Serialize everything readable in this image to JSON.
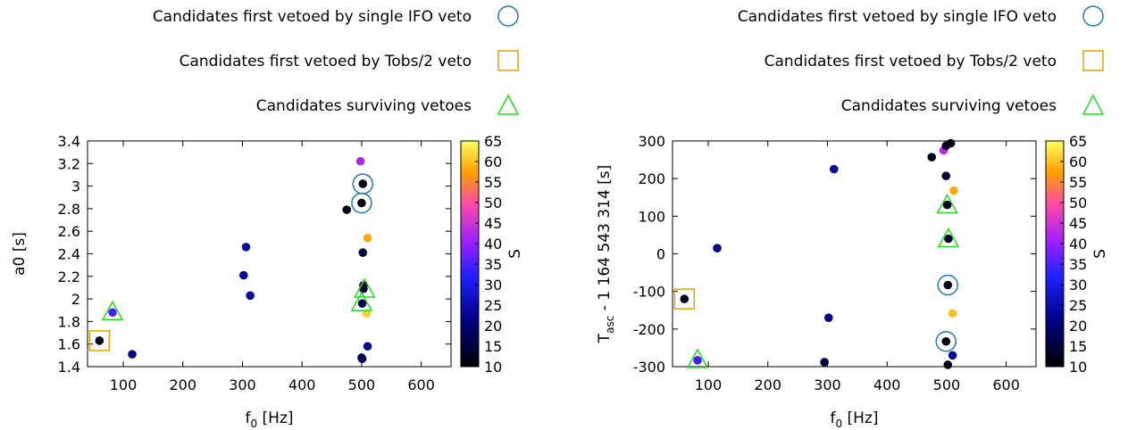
{
  "legend": [
    {
      "label": "Candidates first vetoed by single IFO veto",
      "marker": "circle",
      "color": "#1f7ab4"
    },
    {
      "label": "Candidates first vetoed by Tobs/2 veto",
      "marker": "square",
      "color": "#e69f00"
    },
    {
      "label": "Candidates surviving vetoes",
      "marker": "triangle",
      "color": "#22dd22"
    }
  ],
  "chart_data": [
    {
      "type": "scatter",
      "xlabel": "f0 [Hz]",
      "xlabel_main": "f",
      "xlabel_sub": "0",
      "xlabel_unit": " [Hz]",
      "ylabel": "a0 [s]",
      "xlim": [
        40,
        650
      ],
      "ylim": [
        1.4,
        3.4
      ],
      "xticks": [
        "100",
        "200",
        "300",
        "400",
        "500",
        "600"
      ],
      "xtick_values": [
        100,
        200,
        300,
        400,
        500,
        600
      ],
      "yticks": [
        "1.4",
        "1.6",
        "1.8",
        "2",
        "2.2",
        "2.4",
        "2.6",
        "2.8",
        "3",
        "3.2",
        "3.4"
      ],
      "ytick_values": [
        1.4,
        1.6,
        1.8,
        2.0,
        2.2,
        2.4,
        2.6,
        2.8,
        3.0,
        3.2,
        3.4
      ],
      "colorbar": {
        "label": "S",
        "range": [
          10,
          65
        ],
        "ticks": [
          "10",
          "15",
          "20",
          "25",
          "30",
          "35",
          "40",
          "45",
          "50",
          "55",
          "60",
          "65"
        ]
      },
      "points": [
        {
          "x": 60,
          "y": 1.63,
          "s": 12
        },
        {
          "x": 82,
          "y": 1.88,
          "s": 34
        },
        {
          "x": 115,
          "y": 1.51,
          "s": 22
        },
        {
          "x": 302,
          "y": 2.21,
          "s": 23
        },
        {
          "x": 306,
          "y": 2.46,
          "s": 24
        },
        {
          "x": 313,
          "y": 2.03,
          "s": 24
        },
        {
          "x": 475,
          "y": 2.79,
          "s": 12
        },
        {
          "x": 498,
          "y": 3.22,
          "s": 42
        },
        {
          "x": 500,
          "y": 2.85,
          "s": 11
        },
        {
          "x": 502,
          "y": 3.02,
          "s": 11
        },
        {
          "x": 502,
          "y": 2.41,
          "s": 15
        },
        {
          "x": 503,
          "y": 2.12,
          "s": 12
        },
        {
          "x": 503,
          "y": 2.09,
          "s": 15
        },
        {
          "x": 501,
          "y": 1.96,
          "s": 17
        },
        {
          "x": 500,
          "y": 1.48,
          "s": 17
        },
        {
          "x": 501,
          "y": 1.47,
          "s": 18
        },
        {
          "x": 510,
          "y": 2.54,
          "s": 58
        },
        {
          "x": 508,
          "y": 1.87,
          "s": 61
        },
        {
          "x": 510,
          "y": 1.58,
          "s": 23
        }
      ],
      "vetoed_ifo": [
        {
          "x": 502,
          "y": 3.02
        },
        {
          "x": 500,
          "y": 2.85
        }
      ],
      "vetoed_tobs": [
        {
          "x": 60,
          "y": 1.63
        }
      ],
      "surviving": [
        {
          "x": 82,
          "y": 1.88
        },
        {
          "x": 505,
          "y": 2.08
        },
        {
          "x": 500,
          "y": 1.96
        }
      ]
    },
    {
      "type": "scatter",
      "xlabel": "f0 [Hz]",
      "xlabel_main": "f",
      "xlabel_sub": "0",
      "xlabel_unit": " [Hz]",
      "ylabel": "Tasc - 1 164 543 314 [s]",
      "ylabel_main": "T",
      "ylabel_sub": "asc",
      "ylabel_rest": " - 1 164 543 314 [s]",
      "xlim": [
        40,
        650
      ],
      "ylim": [
        -300,
        300
      ],
      "xticks": [
        "100",
        "200",
        "300",
        "400",
        "500",
        "600"
      ],
      "xtick_values": [
        100,
        200,
        300,
        400,
        500,
        600
      ],
      "yticks": [
        "-300",
        "-200",
        "-100",
        "0",
        "100",
        "200",
        "300"
      ],
      "ytick_values": [
        -300,
        -200,
        -100,
        0,
        100,
        200,
        300
      ],
      "colorbar": {
        "label": "S",
        "range": [
          10,
          65
        ],
        "ticks": [
          "10",
          "15",
          "20",
          "25",
          "30",
          "35",
          "40",
          "45",
          "50",
          "55",
          "60",
          "65"
        ]
      },
      "points": [
        {
          "x": 60,
          "y": -120,
          "s": 12
        },
        {
          "x": 82,
          "y": -283,
          "s": 34
        },
        {
          "x": 115,
          "y": 15,
          "s": 22
        },
        {
          "x": 295,
          "y": -288,
          "s": 15
        },
        {
          "x": 302,
          "y": -170,
          "s": 22
        },
        {
          "x": 311,
          "y": 225,
          "s": 24
        },
        {
          "x": 475,
          "y": 257,
          "s": 12
        },
        {
          "x": 495,
          "y": 275,
          "s": 43
        },
        {
          "x": 499,
          "y": 287,
          "s": 14
        },
        {
          "x": 507,
          "y": 294,
          "s": 11
        },
        {
          "x": 499,
          "y": 207,
          "s": 15
        },
        {
          "x": 512,
          "y": 168,
          "s": 58
        },
        {
          "x": 501,
          "y": 130,
          "s": 12
        },
        {
          "x": 503,
          "y": 40,
          "s": 14
        },
        {
          "x": 502,
          "y": -83,
          "s": 12
        },
        {
          "x": 510,
          "y": -158,
          "s": 60
        },
        {
          "x": 499,
          "y": -233,
          "s": 11
        },
        {
          "x": 510,
          "y": -270,
          "s": 23
        },
        {
          "x": 502,
          "y": -295,
          "s": 12
        }
      ],
      "vetoed_ifo": [
        {
          "x": 502,
          "y": -83
        },
        {
          "x": 499,
          "y": -233
        }
      ],
      "vetoed_tobs": [
        {
          "x": 60,
          "y": -120
        }
      ],
      "surviving": [
        {
          "x": 82,
          "y": -283
        },
        {
          "x": 501,
          "y": 128
        },
        {
          "x": 503,
          "y": 38
        }
      ]
    }
  ]
}
